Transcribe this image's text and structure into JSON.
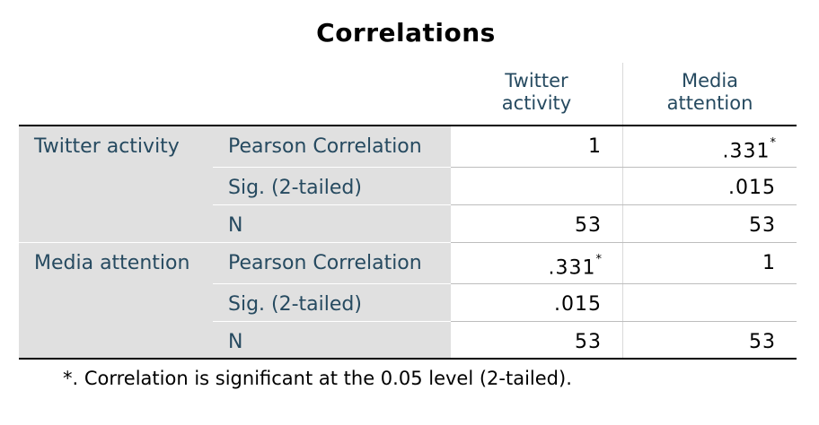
{
  "title": "Correlations",
  "columns": [
    {
      "line1": "Twitter",
      "line2": "activity"
    },
    {
      "line1": "Media",
      "line2": "attention"
    }
  ],
  "rows": [
    {
      "variable": "Twitter activity",
      "stats": [
        {
          "label": "Pearson Correlation",
          "values": [
            "1",
            ".331"
          ],
          "marks": [
            "",
            "*"
          ]
        },
        {
          "label": "Sig. (2-tailed)",
          "values": [
            "",
            ".015"
          ],
          "marks": [
            "",
            ""
          ]
        },
        {
          "label": "N",
          "values": [
            "53",
            "53"
          ],
          "marks": [
            "",
            ""
          ]
        }
      ]
    },
    {
      "variable": "Media attention",
      "stats": [
        {
          "label": "Pearson Correlation",
          "values": [
            ".331",
            "1"
          ],
          "marks": [
            "*",
            ""
          ]
        },
        {
          "label": "Sig. (2-tailed)",
          "values": [
            ".015",
            ""
          ],
          "marks": [
            "",
            ""
          ]
        },
        {
          "label": "N",
          "values": [
            "53",
            "53"
          ],
          "marks": [
            "",
            ""
          ]
        }
      ]
    }
  ],
  "footnote": "*. Correlation is significant at the 0.05 level (2-tailed)."
}
